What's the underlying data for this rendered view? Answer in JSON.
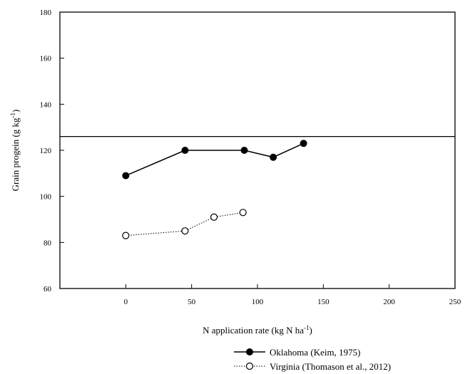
{
  "chart_data": {
    "type": "line",
    "title": "",
    "xlabel": "N application rate (kg N ha",
    "xlabel_sup": "-1",
    "xlabel_tail": ")",
    "ylabel": "Grain progein (g kg",
    "ylabel_sup": "-1",
    "ylabel_tail": ")",
    "xlim": [
      -50,
      250
    ],
    "ylim": [
      60,
      180
    ],
    "xticks": [
      0,
      50,
      100,
      150,
      200,
      250
    ],
    "yticks": [
      60,
      80,
      100,
      120,
      140,
      160,
      180
    ],
    "grid": false,
    "legend_position": "bottom-right",
    "reference_line": {
      "y": 126
    },
    "series": [
      {
        "name": "Oklahoma (Keim, 1975)",
        "marker": "filled-circle",
        "line_style": "solid",
        "color": "#000000",
        "x": [
          0,
          45,
          90,
          112,
          135
        ],
        "y": [
          109,
          120,
          120,
          117,
          123
        ]
      },
      {
        "name": "Virginia (Thomason et al., 2012)",
        "marker": "open-circle",
        "line_style": "dotted",
        "color": "#000000",
        "x": [
          0,
          45,
          67,
          89
        ],
        "y": [
          83,
          85,
          91,
          93
        ]
      }
    ]
  }
}
